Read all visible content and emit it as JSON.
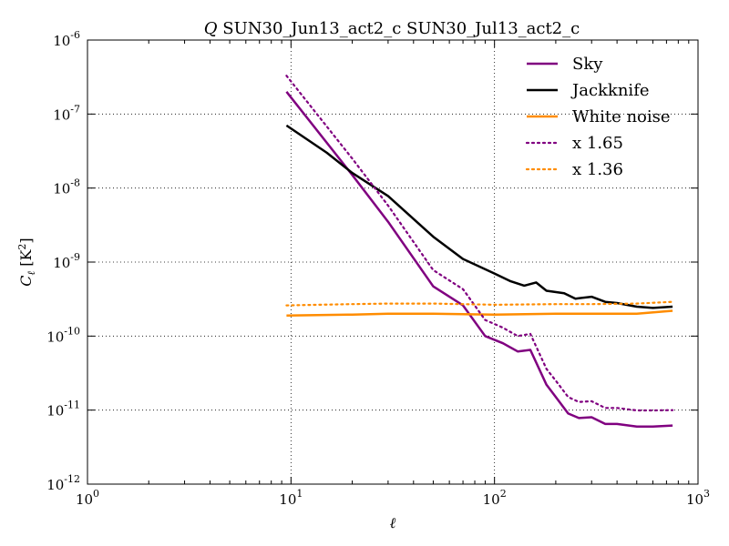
{
  "chart_data": {
    "type": "line",
    "title": "Q SUN30_Jun13_act2_c SUN30_Jul13_act2_c",
    "title_italic_prefix": "Q",
    "title_rest": " SUN30_Jun13_act2_c SUN30_Jul13_act2_c",
    "xlabel": "ℓ",
    "ylabel": "C_ℓ [K²]",
    "ylabel_main": "C",
    "ylabel_sub": "ℓ",
    "ylabel_unit": " [K",
    "ylabel_unit_exp": "2",
    "ylabel_unit_close": "]",
    "x_scale": "log",
    "y_scale": "log",
    "xlim": [
      1,
      1000
    ],
    "ylim": [
      1e-12,
      1e-06
    ],
    "grid": true,
    "legend_position": "top-right",
    "x_ticks": [
      {
        "value": 1,
        "base": "10",
        "exp": "0"
      },
      {
        "value": 10,
        "base": "10",
        "exp": "1"
      },
      {
        "value": 100,
        "base": "10",
        "exp": "2"
      },
      {
        "value": 1000,
        "base": "10",
        "exp": "3"
      }
    ],
    "y_ticks": [
      {
        "value": 1e-12,
        "base": "10",
        "exp": "-12"
      },
      {
        "value": 1e-11,
        "base": "10",
        "exp": "-11"
      },
      {
        "value": 1e-10,
        "base": "10",
        "exp": "-10"
      },
      {
        "value": 1e-09,
        "base": "10",
        "exp": "-9"
      },
      {
        "value": 1e-08,
        "base": "10",
        "exp": "-8"
      },
      {
        "value": 1e-07,
        "base": "10",
        "exp": "-7"
      },
      {
        "value": 1e-06,
        "base": "10",
        "exp": "-6"
      }
    ],
    "series": [
      {
        "name": "Sky",
        "color": "#800080",
        "style": "solid",
        "x": [
          9.5,
          20,
          30,
          50,
          70,
          90,
          110,
          130,
          150,
          180,
          200,
          230,
          260,
          300,
          350,
          400,
          500,
          600,
          750
        ],
        "y": [
          2e-07,
          1.5e-08,
          3.5e-09,
          4.7e-10,
          2.6e-10,
          1e-10,
          8e-11,
          6.2e-11,
          6.5e-11,
          2.2e-11,
          1.5e-11,
          9e-12,
          7.8e-12,
          8e-12,
          6.5e-12,
          6.5e-12,
          6e-12,
          6e-12,
          6.2e-12
        ]
      },
      {
        "name": "Jackknife",
        "color": "#000000",
        "style": "solid",
        "x": [
          9.5,
          15,
          20,
          30,
          50,
          70,
          100,
          120,
          140,
          160,
          180,
          220,
          250,
          300,
          350,
          400,
          500,
          600,
          750
        ],
        "y": [
          7e-08,
          3e-08,
          1.6e-08,
          7.8e-09,
          2.2e-09,
          1.1e-09,
          7e-10,
          5.5e-10,
          4.8e-10,
          5.3e-10,
          4.1e-10,
          3.8e-10,
          3.2e-10,
          3.4e-10,
          2.9e-10,
          2.8e-10,
          2.5e-10,
          2.4e-10,
          2.5e-10
        ]
      },
      {
        "name": "White noise",
        "color": "#ff8c00",
        "style": "solid",
        "x": [
          9.5,
          20,
          30,
          50,
          100,
          200,
          300,
          500,
          750
        ],
        "y": [
          1.9e-10,
          1.95e-10,
          2e-10,
          2e-10,
          1.95e-10,
          2e-10,
          2e-10,
          2e-10,
          2.2e-10
        ]
      },
      {
        "name": "x 1.65",
        "color": "#800080",
        "style": "dotted",
        "x": [
          9.5,
          20,
          30,
          50,
          70,
          90,
          110,
          130,
          150,
          180,
          200,
          230,
          260,
          300,
          350,
          400,
          500,
          600,
          750
        ],
        "y": [
          3.3e-07,
          2.5e-08,
          5.8e-09,
          7.8e-10,
          4.3e-10,
          1.65e-10,
          1.3e-10,
          1e-10,
          1.07e-10,
          3.6e-11,
          2.5e-11,
          1.5e-11,
          1.29e-11,
          1.32e-11,
          1.07e-11,
          1.07e-11,
          9.9e-12,
          9.9e-12,
          1e-11
        ]
      },
      {
        "name": "x 1.36",
        "color": "#ff8c00",
        "style": "dotted",
        "x": [
          9.5,
          20,
          30,
          50,
          100,
          200,
          300,
          500,
          750
        ],
        "y": [
          2.6e-10,
          2.7e-10,
          2.75e-10,
          2.75e-10,
          2.65e-10,
          2.7e-10,
          2.7e-10,
          2.75e-10,
          2.9e-10
        ]
      }
    ]
  }
}
